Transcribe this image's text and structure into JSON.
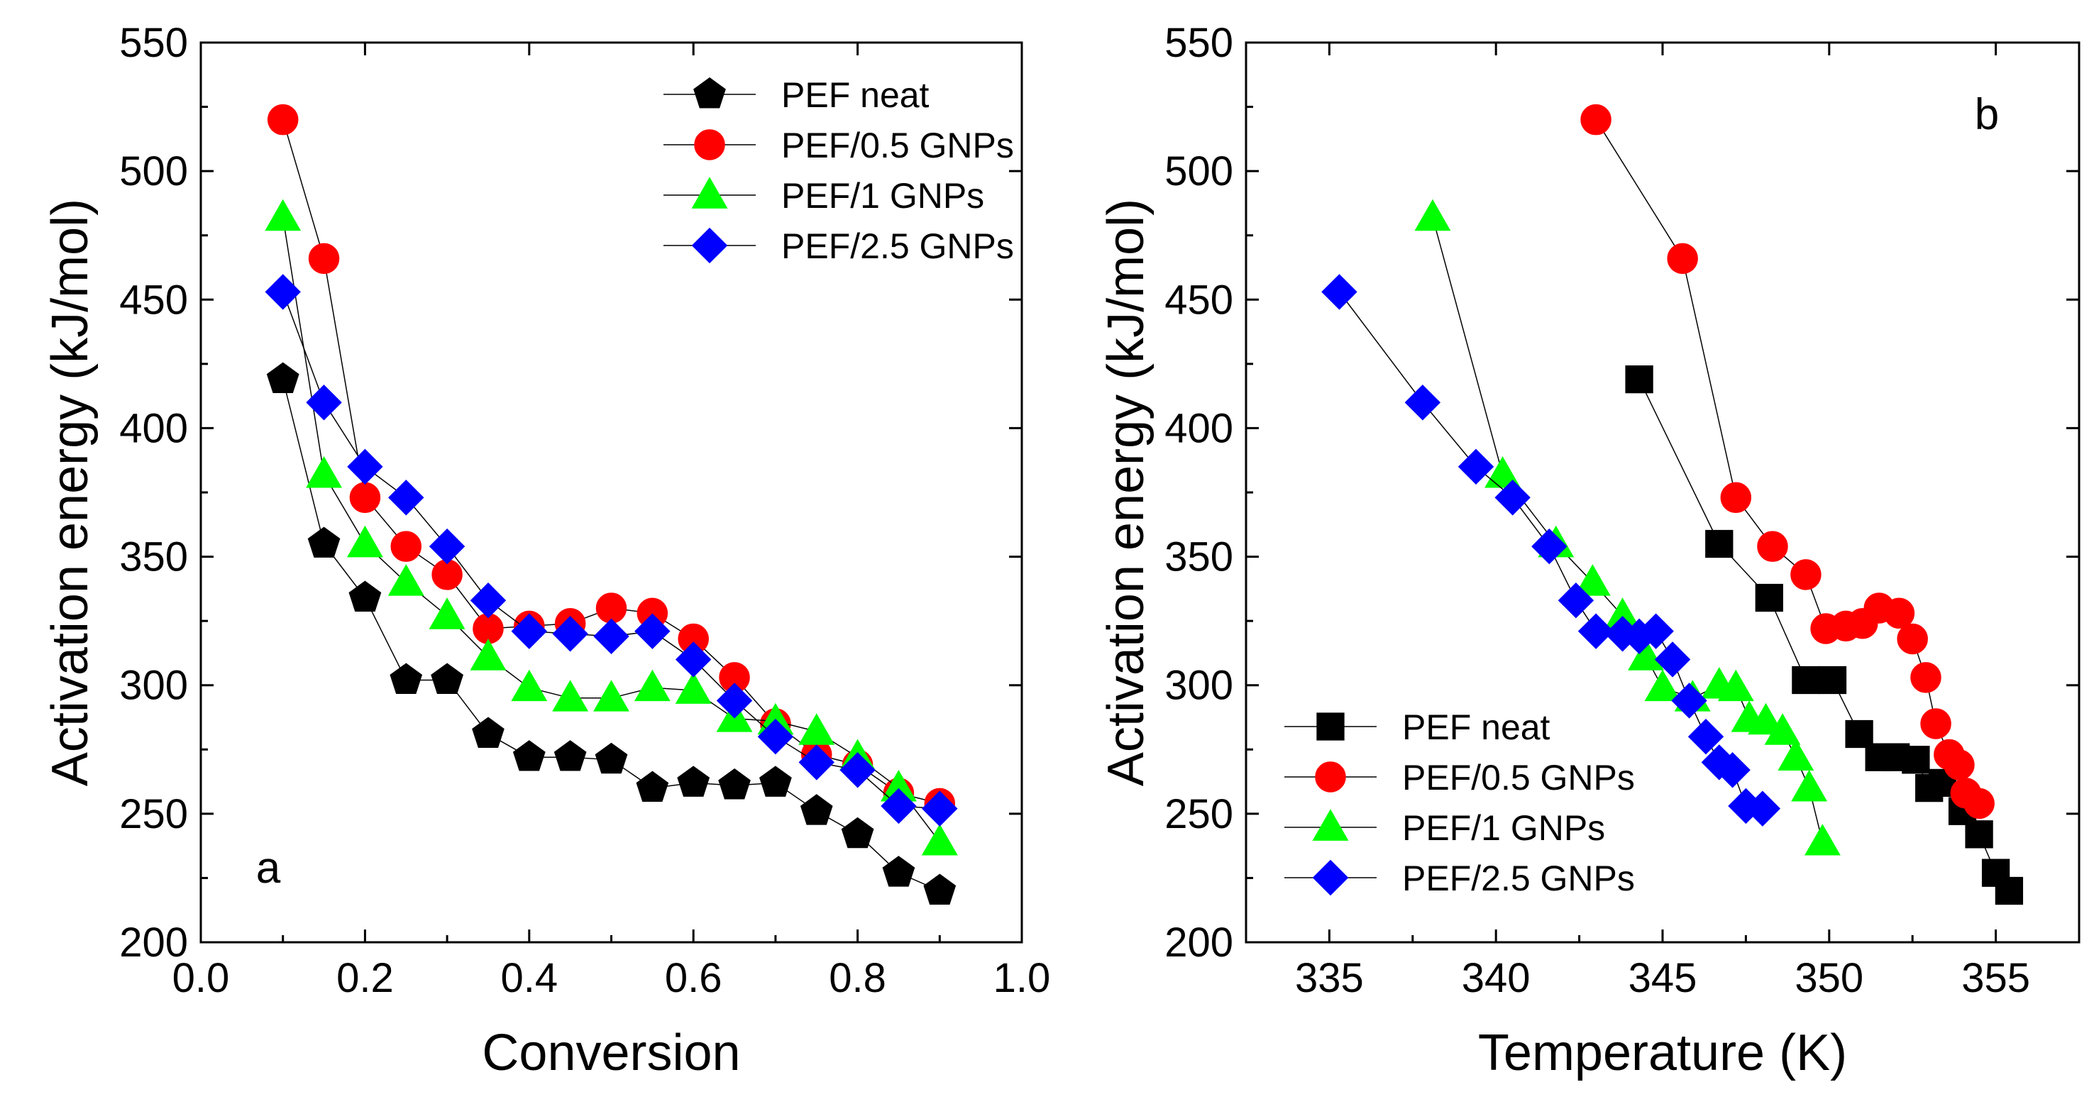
{
  "chart_data": [
    {
      "type": "line",
      "panel": "a",
      "xlabel": "Conversion",
      "ylabel": "Activation energy (kJ/mol)",
      "xlim": [
        0.0,
        1.0
      ],
      "ylim": [
        200,
        550
      ],
      "x_ticks": [
        0.0,
        0.2,
        0.4,
        0.6,
        0.8,
        1.0
      ],
      "x_tick_labels": [
        "0.0",
        "0.2",
        "0.4",
        "0.6",
        "0.8",
        "1.0"
      ],
      "y_ticks": [
        200,
        250,
        300,
        350,
        400,
        450,
        500,
        550
      ],
      "y_tick_labels": [
        "200",
        "250",
        "300",
        "350",
        "400",
        "450",
        "500",
        "550"
      ],
      "legend_position": "top-right",
      "series": [
        {
          "name": "PEF neat",
          "marker": "pentagon",
          "color": "#000000",
          "x": [
            0.1,
            0.15,
            0.2,
            0.25,
            0.3,
            0.35,
            0.4,
            0.45,
            0.5,
            0.55,
            0.6,
            0.65,
            0.7,
            0.75,
            0.8,
            0.85,
            0.9
          ],
          "y": [
            419,
            355,
            334,
            302,
            302,
            281,
            272,
            272,
            271,
            260,
            262,
            261,
            262,
            251,
            242,
            227,
            220
          ]
        },
        {
          "name": "PEF/0.5 GNPs",
          "marker": "circle",
          "color": "#ff0000",
          "x": [
            0.1,
            0.15,
            0.2,
            0.25,
            0.3,
            0.35,
            0.4,
            0.45,
            0.5,
            0.55,
            0.6,
            0.65,
            0.7,
            0.75,
            0.8,
            0.85,
            0.9
          ],
          "y": [
            520,
            466,
            373,
            354,
            343,
            322,
            323,
            324,
            330,
            328,
            318,
            303,
            285,
            273,
            269,
            258,
            254
          ]
        },
        {
          "name": "PEF/1 GNPs",
          "marker": "triangle",
          "color": "#00ff00",
          "x": [
            0.1,
            0.15,
            0.2,
            0.25,
            0.3,
            0.35,
            0.4,
            0.45,
            0.5,
            0.55,
            0.6,
            0.65,
            0.7,
            0.75,
            0.8,
            0.85,
            0.9
          ],
          "y": [
            482,
            382,
            355,
            340,
            327,
            311,
            299,
            295,
            295,
            299,
            298,
            287,
            286,
            282,
            272,
            260,
            239
          ]
        },
        {
          "name": "PEF/2.5 GNPs",
          "marker": "diamond",
          "color": "#0000ff",
          "x": [
            0.1,
            0.15,
            0.2,
            0.25,
            0.3,
            0.35,
            0.4,
            0.45,
            0.5,
            0.55,
            0.6,
            0.65,
            0.7,
            0.75,
            0.8,
            0.85,
            0.9
          ],
          "y": [
            453,
            410,
            385,
            373,
            354,
            333,
            321,
            320,
            319,
            321,
            310,
            294,
            280,
            270,
            267,
            253,
            252
          ]
        }
      ]
    },
    {
      "type": "line",
      "panel": "b",
      "xlabel": "Temperature (K)",
      "ylabel": "Activation energy (kJ/mol)",
      "xlim": [
        332.5,
        357.5
      ],
      "ylim": [
        200,
        550
      ],
      "x_ticks": [
        335,
        340,
        345,
        350,
        355
      ],
      "x_tick_labels": [
        "335",
        "340",
        "345",
        "350",
        "355"
      ],
      "y_ticks": [
        200,
        250,
        300,
        350,
        400,
        450,
        500,
        550
      ],
      "y_tick_labels": [
        "200",
        "250",
        "300",
        "350",
        "400",
        "450",
        "500",
        "550"
      ],
      "legend_position": "bottom-left",
      "series": [
        {
          "name": "PEF neat",
          "marker": "square",
          "color": "#000000",
          "x": [
            344.3,
            346.7,
            348.2,
            349.3,
            350.1,
            350.9,
            351.5,
            352.0,
            352.6,
            353.0,
            353.4,
            354.0,
            354.5,
            355.0,
            355.4
          ],
          "y": [
            419,
            355,
            334,
            302,
            302,
            281,
            272,
            272,
            271,
            260,
            262,
            251,
            242,
            227,
            220
          ]
        },
        {
          "name": "PEF/0.5 GNPs",
          "marker": "circle",
          "color": "#ff0000",
          "x": [
            343.0,
            345.6,
            347.2,
            348.3,
            349.3,
            349.9,
            350.5,
            351.0,
            351.5,
            352.1,
            352.5,
            352.9,
            353.2,
            353.6,
            353.9,
            354.1,
            354.5
          ],
          "y": [
            520,
            466,
            373,
            354,
            343,
            322,
            323,
            324,
            330,
            328,
            318,
            303,
            285,
            273,
            269,
            258,
            254
          ]
        },
        {
          "name": "PEF/1 GNPs",
          "marker": "triangle",
          "color": "#00ff00",
          "x": [
            338.1,
            340.2,
            341.8,
            342.9,
            343.8,
            344.5,
            345.0,
            345.9,
            346.7,
            347.2,
            347.6,
            348.1,
            348.6,
            349.0,
            349.4,
            349.8
          ],
          "y": [
            482,
            382,
            355,
            340,
            327,
            311,
            299,
            295,
            300,
            299,
            287,
            286,
            282,
            272,
            260,
            239
          ]
        },
        {
          "name": "PEF/2.5 GNPs",
          "marker": "diamond",
          "color": "#0000ff",
          "x": [
            335.3,
            337.8,
            339.4,
            340.5,
            341.6,
            342.4,
            343.0,
            343.8,
            344.3,
            344.8,
            345.3,
            345.8,
            346.3,
            346.7,
            347.1,
            347.5,
            348.0
          ],
          "y": [
            453,
            410,
            385,
            373,
            354,
            333,
            321,
            320,
            319,
            321,
            310,
            294,
            280,
            270,
            267,
            253,
            252
          ]
        }
      ]
    }
  ]
}
